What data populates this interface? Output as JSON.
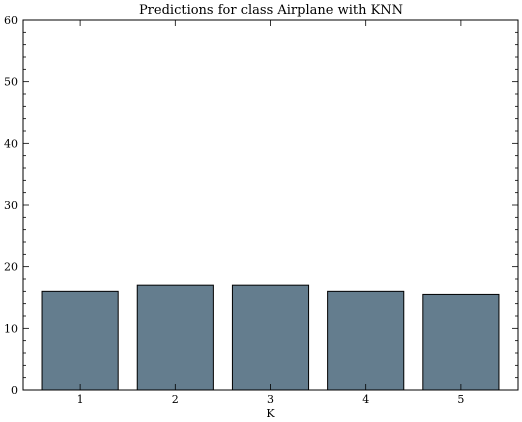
{
  "chart_data": {
    "type": "bar",
    "title": "Predictions for class Airplane with KNN",
    "xlabel": "K",
    "ylabel": "",
    "categories": [
      "1",
      "2",
      "3",
      "4",
      "5"
    ],
    "values": [
      16,
      17,
      17,
      16,
      15.5
    ],
    "ylim": [
      0,
      60
    ],
    "yticks": [
      0,
      10,
      20,
      30,
      40,
      50,
      60
    ],
    "grid": false,
    "legend": "none",
    "bar_color": "#647d8e",
    "bar_edge_color": "#000000"
  }
}
